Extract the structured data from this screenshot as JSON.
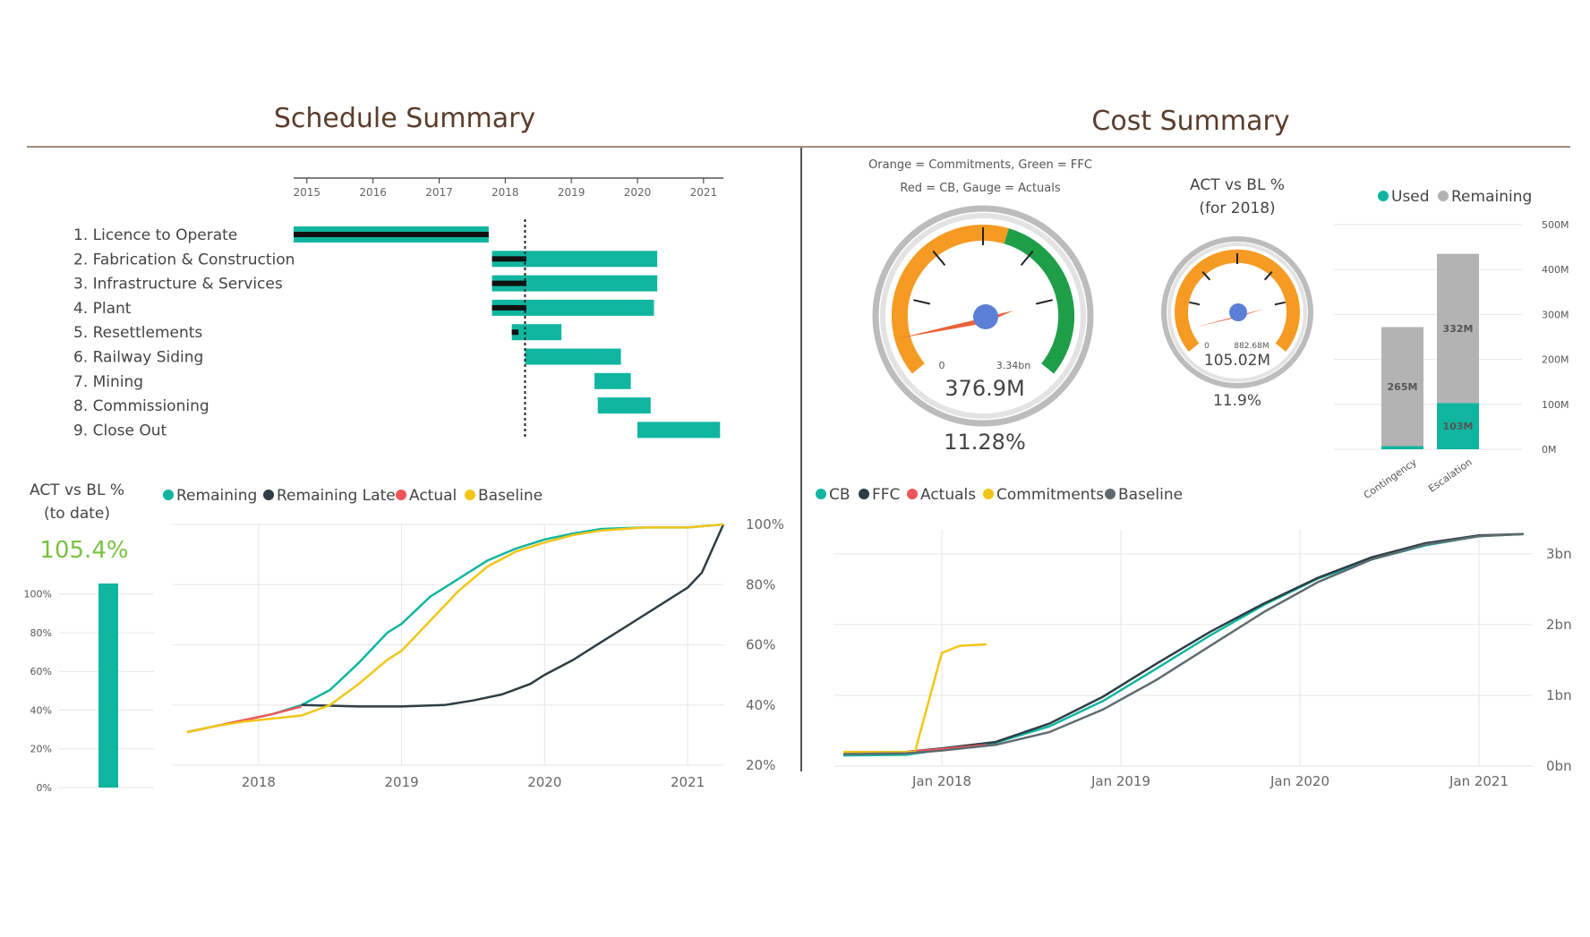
{
  "schedule_title": "Schedule Summary",
  "cost_title": "Cost Summary",
  "colors": {
    "teal": "#10b5a0",
    "dark": "#2e3d45",
    "red": "#f0545b",
    "yellow": "#f2c618",
    "orange": "#f59a23",
    "green": "#1e9e48",
    "gray": "#b3b3b3",
    "blue": "#5b7fd6",
    "kpi_green": "#7ac142",
    "brown": "#5a3d2b"
  },
  "act_vs_bl_todate": {
    "title_line1": "ACT vs BL %",
    "title_line2": "(to date)",
    "value": "105.4%"
  },
  "gauge_notes": {
    "line1": "Orange = Commitments, Green = FFC",
    "line2": "Red = CB, Gauge = Actuals"
  },
  "gauge_main": {
    "min_label": "0",
    "max_label": "3.34bn",
    "value_label": "376.9M",
    "percent_label": "11.28%"
  },
  "gauge_2018": {
    "title_line1": "ACT vs BL %",
    "title_line2": "(for 2018)",
    "min_label": "0",
    "max_label": "882.68M",
    "value_label": "105.02M",
    "percent_label": "11.9%"
  },
  "chart_data": [
    {
      "type": "bar",
      "subtype": "gantt",
      "x_ticks": [
        "2015",
        "2016",
        "2017",
        "2018",
        "2019",
        "2020",
        "2021"
      ],
      "xlim": [
        2014.8,
        2021.3
      ],
      "categories": [
        "1. Licence to Operate",
        "2. Fabrication & Construction",
        "3. Infrastructure & Services",
        "4. Plant",
        "5. Resettlements",
        "6. Railway Siding",
        "7. Mining",
        "8. Commissioning",
        "9. Close Out"
      ],
      "baseline_bars": [
        [
          2014.8,
          2017.75
        ],
        [
          2017.8,
          2020.3
        ],
        [
          2017.8,
          2020.3
        ],
        [
          2017.8,
          2020.25
        ],
        [
          2018.1,
          2018.85
        ],
        [
          2018.3,
          2019.75
        ],
        [
          2019.35,
          2019.9
        ],
        [
          2019.4,
          2020.2
        ],
        [
          2020.0,
          2021.25
        ]
      ],
      "actual_bars": [
        [
          2014.8,
          2017.75
        ],
        [
          2017.8,
          2018.32
        ],
        [
          2017.8,
          2018.32
        ],
        [
          2017.8,
          2018.32
        ],
        [
          2018.1,
          2018.2
        ],
        null,
        null,
        null,
        null
      ],
      "today_marker": 2018.3
    },
    {
      "type": "bar",
      "title": "ACT vs BL %",
      "categories": [
        ""
      ],
      "values": [
        105.4
      ],
      "y_ticks": [
        "0%",
        "20%",
        "40%",
        "60%",
        "80%",
        "100%"
      ],
      "ylim": [
        0,
        105.4
      ]
    },
    {
      "type": "line",
      "x_ticks": [
        "2018",
        "2019",
        "2020",
        "2021"
      ],
      "xlim": [
        2017.4,
        2021.25
      ],
      "y_ticks": [
        "20%",
        "40%",
        "60%",
        "80%",
        "100%"
      ],
      "ylim": [
        20,
        100
      ],
      "series": [
        {
          "name": "Remaining",
          "color": "#10b5a0",
          "points": [
            [
              2017.5,
              31
            ],
            [
              2017.7,
              33
            ],
            [
              2017.9,
              35
            ],
            [
              2018.1,
              37
            ],
            [
              2018.3,
              40
            ],
            [
              2018.5,
              45
            ],
            [
              2018.7,
              54
            ],
            [
              2018.9,
              64
            ],
            [
              2019.0,
              67
            ],
            [
              2019.2,
              76
            ],
            [
              2019.4,
              82
            ],
            [
              2019.6,
              88
            ],
            [
              2019.8,
              92
            ],
            [
              2020.0,
              95
            ],
            [
              2020.2,
              97
            ],
            [
              2020.4,
              98.5
            ],
            [
              2020.7,
              99
            ],
            [
              2021.0,
              99
            ],
            [
              2021.25,
              100
            ]
          ]
        },
        {
          "name": "Remaining Late",
          "color": "#2e3d45",
          "points": [
            [
              2018.3,
              40
            ],
            [
              2018.7,
              39.5
            ],
            [
              2019.0,
              39.5
            ],
            [
              2019.3,
              40
            ],
            [
              2019.5,
              41.5
            ],
            [
              2019.7,
              43.5
            ],
            [
              2019.9,
              47
            ],
            [
              2020.0,
              50
            ],
            [
              2020.2,
              55
            ],
            [
              2020.4,
              61
            ],
            [
              2020.6,
              67
            ],
            [
              2020.8,
              73
            ],
            [
              2021.0,
              79
            ],
            [
              2021.1,
              84
            ],
            [
              2021.25,
              100
            ]
          ]
        },
        {
          "name": "Actual",
          "color": "#f0545b",
          "points": [
            [
              2017.5,
              31
            ],
            [
              2017.7,
              33
            ],
            [
              2017.9,
              35
            ],
            [
              2018.1,
              37
            ],
            [
              2018.3,
              39.5
            ]
          ]
        },
        {
          "name": "Baseline",
          "color": "#f2c618",
          "points": [
            [
              2017.5,
              31
            ],
            [
              2017.7,
              33
            ],
            [
              2017.9,
              34.5
            ],
            [
              2018.1,
              35.5
            ],
            [
              2018.3,
              36.5
            ],
            [
              2018.5,
              40
            ],
            [
              2018.7,
              47
            ],
            [
              2018.9,
              55
            ],
            [
              2019.0,
              58
            ],
            [
              2019.2,
              68
            ],
            [
              2019.4,
              78
            ],
            [
              2019.6,
              86
            ],
            [
              2019.8,
              91
            ],
            [
              2020.0,
              94
            ],
            [
              2020.2,
              96.5
            ],
            [
              2020.4,
              98
            ],
            [
              2020.7,
              99
            ],
            [
              2021.0,
              99
            ],
            [
              2021.25,
              100
            ]
          ]
        }
      ]
    },
    {
      "type": "bar",
      "subtype": "stacked",
      "categories": [
        "Contingency",
        "Escalation"
      ],
      "y_ticks": [
        "0M",
        "100M",
        "200M",
        "300M",
        "400M",
        "500M"
      ],
      "ylim": [
        0,
        500
      ],
      "series": [
        {
          "name": "Used",
          "color": "#10b5a0",
          "values": [
            7,
            103
          ],
          "labels": [
            "",
            "103M"
          ]
        },
        {
          "name": "Remaining",
          "color": "#b3b3b3",
          "values": [
            265,
            332
          ],
          "labels": [
            "265M",
            "332M"
          ]
        }
      ]
    },
    {
      "type": "line",
      "x_ticks": [
        "Jan 2018",
        "Jan 2019",
        "Jan 2020",
        "Jan 2021"
      ],
      "xlim": [
        2017.4,
        2021.3
      ],
      "y_ticks": [
        "0bn",
        "1bn",
        "2bn",
        "3bn"
      ],
      "ylim": [
        0,
        3.34
      ],
      "series": [
        {
          "name": "CB",
          "color": "#10b5a0",
          "points": [
            [
              2017.45,
              0.15
            ],
            [
              2017.8,
              0.16
            ],
            [
              2018.0,
              0.23
            ],
            [
              2018.3,
              0.33
            ],
            [
              2018.6,
              0.56
            ],
            [
              2018.9,
              0.92
            ],
            [
              2019.2,
              1.38
            ],
            [
              2019.5,
              1.85
            ],
            [
              2019.8,
              2.28
            ],
            [
              2020.1,
              2.65
            ],
            [
              2020.4,
              2.92
            ],
            [
              2020.7,
              3.12
            ],
            [
              2021.0,
              3.25
            ],
            [
              2021.25,
              3.28
            ]
          ]
        },
        {
          "name": "FFC",
          "color": "#2e3d45",
          "points": [
            [
              2017.45,
              0.2
            ],
            [
              2017.8,
              0.2
            ],
            [
              2018.0,
              0.25
            ],
            [
              2018.3,
              0.34
            ],
            [
              2018.6,
              0.6
            ],
            [
              2018.9,
              0.98
            ],
            [
              2019.2,
              1.45
            ],
            [
              2019.5,
              1.9
            ],
            [
              2019.8,
              2.3
            ],
            [
              2020.1,
              2.66
            ],
            [
              2020.4,
              2.95
            ],
            [
              2020.7,
              3.15
            ],
            [
              2021.0,
              3.26
            ],
            [
              2021.25,
              3.28
            ]
          ]
        },
        {
          "name": "Actuals",
          "color": "#f0545b",
          "points": [
            [
              2017.45,
              0.2
            ],
            [
              2017.8,
              0.2
            ],
            [
              2018.0,
              0.24
            ],
            [
              2018.25,
              0.3
            ]
          ]
        },
        {
          "name": "Commitments",
          "color": "#f2c618",
          "points": [
            [
              2017.45,
              0.2
            ],
            [
              2017.85,
              0.2
            ],
            [
              2018.0,
              1.6
            ],
            [
              2018.1,
              1.7
            ],
            [
              2018.25,
              1.72
            ]
          ]
        },
        {
          "name": "Baseline",
          "color": "#5f6b70",
          "points": [
            [
              2017.45,
              0.17
            ],
            [
              2017.8,
              0.18
            ],
            [
              2018.0,
              0.22
            ],
            [
              2018.3,
              0.3
            ],
            [
              2018.6,
              0.48
            ],
            [
              2018.9,
              0.8
            ],
            [
              2019.2,
              1.22
            ],
            [
              2019.5,
              1.7
            ],
            [
              2019.8,
              2.18
            ],
            [
              2020.1,
              2.6
            ],
            [
              2020.4,
              2.92
            ],
            [
              2020.7,
              3.13
            ],
            [
              2021.0,
              3.25
            ],
            [
              2021.25,
              3.28
            ]
          ]
        }
      ]
    }
  ]
}
